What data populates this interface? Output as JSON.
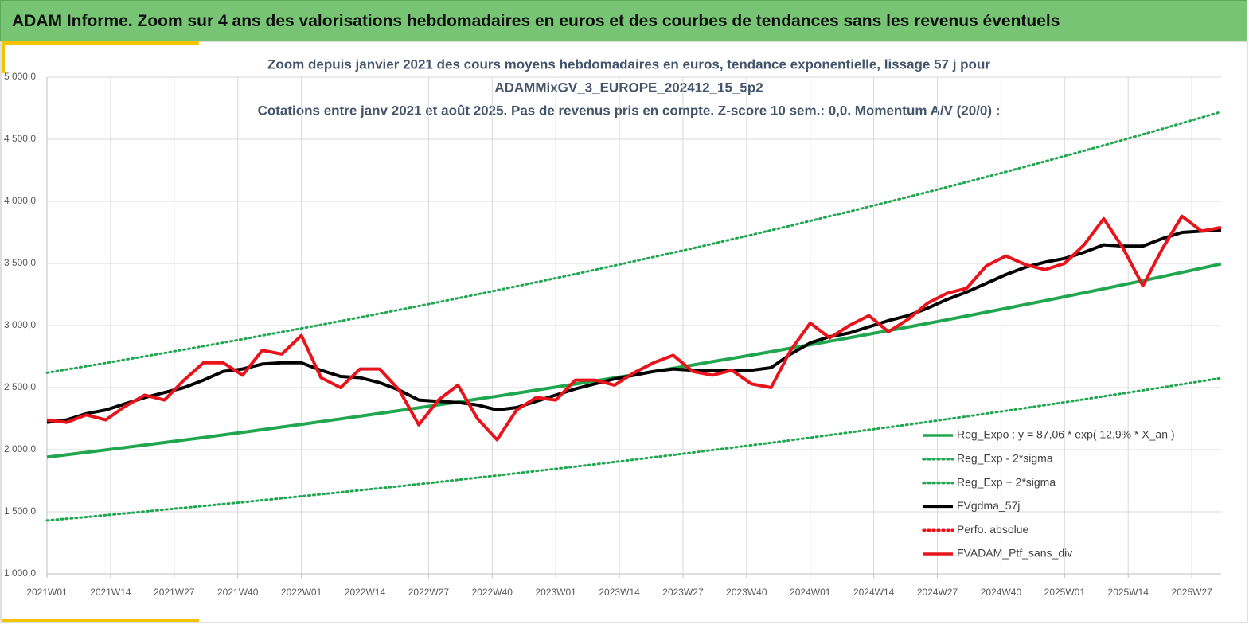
{
  "header": {
    "title": "ADAM Informe. Zoom sur 4 ans des valorisations hebdomadaires en euros et des courbes de tendances sans les revenus éventuels"
  },
  "chart_data": {
    "type": "line",
    "title": [
      "Zoom depuis janvier 2021 des cours moyens hebdomadaires  en euros, tendance exponentielle, lissage 57 j pour",
      "ADAMMixGV_3_EUROPE_202412_15_5p2",
      "Cotations entre janv 2021 et août 2025. Pas de revenus pris en compte. Z-score 10 sem.: 0,0. Momentum A/V (20/0) :"
    ],
    "x": [
      0,
      4,
      8,
      12,
      16,
      20,
      24,
      28,
      32,
      36,
      40,
      44,
      48,
      52,
      56,
      60,
      64,
      68,
      72,
      76,
      80,
      84,
      88,
      92,
      96,
      100,
      104,
      108,
      112,
      116,
      120,
      124,
      128,
      132,
      136,
      140,
      144,
      148,
      152,
      156,
      160,
      164,
      168,
      172,
      176,
      180,
      184,
      188,
      192,
      196,
      200,
      204,
      208,
      212,
      216,
      220,
      224,
      228,
      232,
      236,
      240
    ],
    "xlim": [
      0,
      240
    ],
    "xticks": [
      {
        "value": 0,
        "label": "2021W01"
      },
      {
        "value": 13,
        "label": "2021W14"
      },
      {
        "value": 26,
        "label": "2021W27"
      },
      {
        "value": 39,
        "label": "2021W40"
      },
      {
        "value": 52,
        "label": "2022W01"
      },
      {
        "value": 65,
        "label": "2022W14"
      },
      {
        "value": 78,
        "label": "2022W27"
      },
      {
        "value": 91,
        "label": "2022W40"
      },
      {
        "value": 104,
        "label": "2023W01"
      },
      {
        "value": 117,
        "label": "2023W14"
      },
      {
        "value": 130,
        "label": "2023W27"
      },
      {
        "value": 143,
        "label": "2023W40"
      },
      {
        "value": 156,
        "label": "2024W01"
      },
      {
        "value": 169,
        "label": "2024W14"
      },
      {
        "value": 182,
        "label": "2024W27"
      },
      {
        "value": 195,
        "label": "2024W40"
      },
      {
        "value": 208,
        "label": "2025W01"
      },
      {
        "value": 221,
        "label": "2025W14"
      },
      {
        "value": 234,
        "label": "2025W27"
      }
    ],
    "ylim": [
      1000,
      5000
    ],
    "yticks": [
      {
        "value": 1000,
        "label": "1 000,0"
      },
      {
        "value": 1500,
        "label": "1 500,0"
      },
      {
        "value": 2000,
        "label": "2 000,0"
      },
      {
        "value": 2500,
        "label": "2 500,0"
      },
      {
        "value": 3000,
        "label": "3 000,0"
      },
      {
        "value": 3500,
        "label": "3 500,0"
      },
      {
        "value": 4000,
        "label": "4 000,0"
      },
      {
        "value": 4500,
        "label": "4 500,0"
      },
      {
        "value": 5000,
        "label": "5 000,0"
      }
    ],
    "grid": true,
    "legend": "lower right",
    "series": [
      {
        "name": "Reg_Expo : y = 87,06 * exp( 12,9% *  X_an )",
        "color": "#21a650",
        "style": "solid",
        "values": [
          1940,
          1959,
          1978,
          1998,
          2018,
          2038,
          2058,
          2078,
          2098,
          2119,
          2140,
          2161,
          2183,
          2204,
          2226,
          2248,
          2270,
          2292,
          2315,
          2338,
          2361,
          2384,
          2408,
          2431,
          2455,
          2480,
          2504,
          2529,
          2554,
          2579,
          2604,
          2630,
          2656,
          2682,
          2709,
          2735,
          2762,
          2789,
          2817,
          2845,
          2873,
          2901,
          2930,
          2959,
          2988,
          3017,
          3047,
          3077,
          3108,
          3138,
          3169,
          3200,
          3232,
          3264,
          3296,
          3329,
          3361,
          3395,
          3428,
          3462,
          3496
        ]
      },
      {
        "name": "Reg_Exp - 2*sigma",
        "color": "#21a650",
        "style": "dotted",
        "values": [
          1430,
          1444,
          1458,
          1473,
          1487,
          1502,
          1517,
          1532,
          1547,
          1562,
          1577,
          1593,
          1609,
          1625,
          1641,
          1657,
          1673,
          1690,
          1706,
          1723,
          1740,
          1757,
          1775,
          1792,
          1810,
          1828,
          1846,
          1864,
          1882,
          1901,
          1920,
          1939,
          1958,
          1977,
          1997,
          2016,
          2036,
          2056,
          2076,
          2097,
          2118,
          2139,
          2160,
          2181,
          2202,
          2224,
          2246,
          2268,
          2291,
          2313,
          2336,
          2359,
          2382,
          2406,
          2430,
          2454,
          2478,
          2502,
          2527,
          2552,
          2577
        ]
      },
      {
        "name": "Reg_Exp + 2*sigma",
        "color": "#21a650",
        "style": "dotted",
        "values": [
          2620,
          2646,
          2672,
          2698,
          2725,
          2752,
          2779,
          2806,
          2834,
          2862,
          2890,
          2919,
          2948,
          2977,
          3006,
          3036,
          3066,
          3096,
          3126,
          3157,
          3188,
          3220,
          3251,
          3284,
          3316,
          3349,
          3382,
          3415,
          3449,
          3483,
          3517,
          3552,
          3587,
          3622,
          3658,
          3694,
          3730,
          3767,
          3804,
          3842,
          3880,
          3918,
          3957,
          3996,
          4035,
          4075,
          4115,
          4156,
          4197,
          4238,
          4280,
          4322,
          4365,
          4408,
          4451,
          4495,
          4540,
          4584,
          4630,
          4675,
          4721
        ]
      },
      {
        "name": "FVgdma_57j",
        "color": "#000000",
        "style": "solid",
        "values": [
          2220,
          2240,
          2290,
          2320,
          2370,
          2420,
          2460,
          2500,
          2560,
          2630,
          2650,
          2690,
          2700,
          2700,
          2640,
          2590,
          2580,
          2540,
          2480,
          2400,
          2390,
          2380,
          2360,
          2320,
          2340,
          2390,
          2440,
          2490,
          2530,
          2570,
          2600,
          2630,
          2650,
          2640,
          2640,
          2640,
          2640,
          2660,
          2770,
          2860,
          2910,
          2940,
          2990,
          3040,
          3080,
          3140,
          3210,
          3270,
          3340,
          3410,
          3470,
          3510,
          3540,
          3590,
          3650,
          3640,
          3640,
          3700,
          3750,
          3760,
          3770
        ]
      },
      {
        "name": "Perfo. absolue",
        "color": "#e8141b",
        "style": "dotted",
        "values": [
          null,
          null,
          null,
          null,
          null,
          null,
          null,
          null,
          null,
          null,
          null,
          null,
          null,
          null,
          null,
          null,
          null,
          null,
          null,
          null,
          null,
          null,
          null,
          null,
          null,
          null,
          null,
          null,
          null,
          null,
          null,
          null,
          null,
          null,
          null,
          null,
          null,
          null,
          null,
          null,
          null,
          null,
          null,
          null,
          null,
          null,
          null,
          null,
          null,
          null,
          null,
          null,
          null,
          null,
          null,
          null,
          null,
          null,
          null,
          null,
          null
        ]
      },
      {
        "name": "FVADAM_Ptf_sans_div",
        "color": "#e8141b",
        "style": "solid",
        "values": [
          2240,
          2220,
          2280,
          2240,
          2350,
          2440,
          2400,
          2560,
          2700,
          2700,
          2600,
          2800,
          2770,
          2920,
          2580,
          2500,
          2650,
          2650,
          2480,
          2200,
          2400,
          2520,
          2250,
          2080,
          2320,
          2420,
          2400,
          2560,
          2560,
          2520,
          2620,
          2700,
          2760,
          2630,
          2600,
          2640,
          2530,
          2500,
          2800,
          3020,
          2900,
          3000,
          3080,
          2950,
          3050,
          3180,
          3260,
          3300,
          3480,
          3560,
          3490,
          3450,
          3500,
          3650,
          3860,
          3620,
          3320,
          3620,
          3880,
          3760,
          3790
        ]
      }
    ]
  }
}
